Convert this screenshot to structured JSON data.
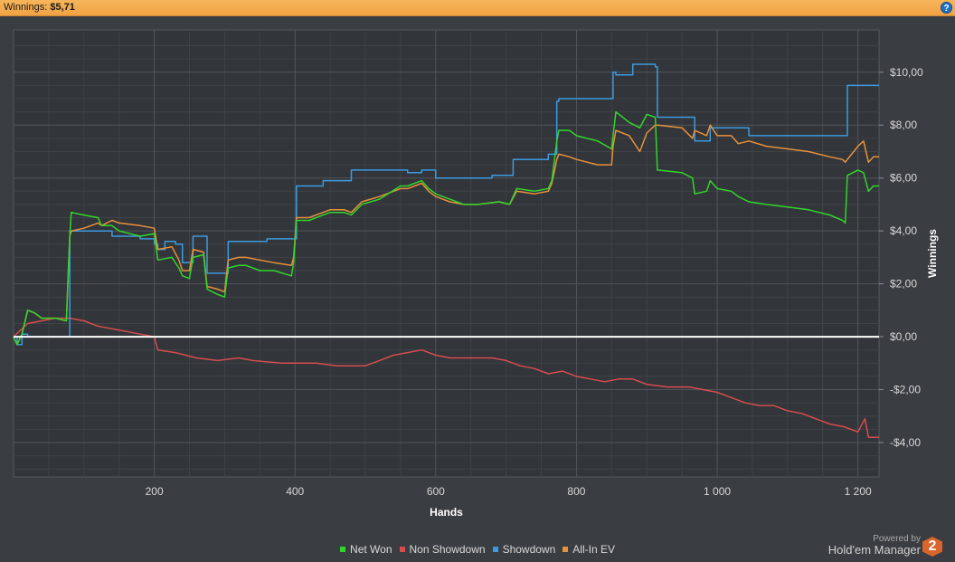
{
  "header": {
    "label": "Winnings:",
    "value": "$5,71",
    "help": "?"
  },
  "legend_footer": {
    "powered_by": "Powered by",
    "brand": "Hold'em Manager",
    "logo": "2"
  },
  "colors": {
    "net_won": "#33d52c",
    "non_showdown": "#d64d4d",
    "showdown": "#3c9be0",
    "all_in_ev": "#e8913c",
    "zero_line": "#ffffff",
    "background": "#3a3d42"
  },
  "chart_data": {
    "type": "line",
    "xlabel": "Hands",
    "ylabel": "Winnings",
    "xlim": [
      0,
      1230
    ],
    "ylim": [
      -5.3,
      11.6
    ],
    "x_ticks": [
      200,
      400,
      600,
      800,
      1000,
      1200
    ],
    "x_tick_labels": [
      "200",
      "400",
      "600",
      "800",
      "1 000",
      "1 200"
    ],
    "y_ticks": [
      10,
      8,
      6,
      4,
      2,
      0,
      -2,
      -4
    ],
    "y_tick_labels": [
      "$10,00",
      "$8,00",
      "$6,00",
      "$4,00",
      "$2,00",
      "$0,00",
      "-$2,00",
      "-$4,00"
    ],
    "grid": true,
    "legend_position": "bottom",
    "series": [
      {
        "name": "Net Won",
        "color": "#33d52c",
        "points": [
          [
            0,
            0
          ],
          [
            5,
            -0.3
          ],
          [
            12,
            0.1
          ],
          [
            20,
            1.0
          ],
          [
            30,
            0.9
          ],
          [
            40,
            0.7
          ],
          [
            60,
            0.7
          ],
          [
            75,
            0.6
          ],
          [
            78,
            2.6
          ],
          [
            80,
            3.8
          ],
          [
            82,
            4.7
          ],
          [
            100,
            4.6
          ],
          [
            120,
            4.5
          ],
          [
            125,
            4.2
          ],
          [
            140,
            4.2
          ],
          [
            150,
            4.0
          ],
          [
            180,
            3.8
          ],
          [
            200,
            3.9
          ],
          [
            205,
            2.9
          ],
          [
            225,
            3.0
          ],
          [
            235,
            2.6
          ],
          [
            240,
            2.3
          ],
          [
            250,
            2.2
          ],
          [
            255,
            3.0
          ],
          [
            270,
            3.1
          ],
          [
            275,
            1.8
          ],
          [
            290,
            1.6
          ],
          [
            300,
            1.5
          ],
          [
            305,
            2.6
          ],
          [
            320,
            2.7
          ],
          [
            330,
            2.7
          ],
          [
            350,
            2.5
          ],
          [
            370,
            2.5
          ],
          [
            395,
            2.3
          ],
          [
            398,
            2.8
          ],
          [
            402,
            4.4
          ],
          [
            420,
            4.4
          ],
          [
            440,
            4.6
          ],
          [
            450,
            4.7
          ],
          [
            470,
            4.7
          ],
          [
            480,
            4.6
          ],
          [
            495,
            5.0
          ],
          [
            520,
            5.2
          ],
          [
            550,
            5.7
          ],
          [
            560,
            5.7
          ],
          [
            580,
            5.9
          ],
          [
            590,
            5.6
          ],
          [
            600,
            5.4
          ],
          [
            610,
            5.3
          ],
          [
            620,
            5.2
          ],
          [
            640,
            5.0
          ],
          [
            660,
            5.0
          ],
          [
            690,
            5.1
          ],
          [
            705,
            5.0
          ],
          [
            715,
            5.6
          ],
          [
            740,
            5.5
          ],
          [
            760,
            5.6
          ],
          [
            765,
            5.9
          ],
          [
            772,
            7.4
          ],
          [
            775,
            7.8
          ],
          [
            790,
            7.8
          ],
          [
            800,
            7.6
          ],
          [
            830,
            7.4
          ],
          [
            850,
            7.1
          ],
          [
            852,
            7.6
          ],
          [
            856,
            8.5
          ],
          [
            875,
            8.1
          ],
          [
            890,
            7.9
          ],
          [
            900,
            8.4
          ],
          [
            912,
            8.3
          ],
          [
            915,
            6.3
          ],
          [
            950,
            6.2
          ],
          [
            965,
            6.0
          ],
          [
            968,
            5.4
          ],
          [
            985,
            5.5
          ],
          [
            990,
            5.9
          ],
          [
            1000,
            5.6
          ],
          [
            1020,
            5.5
          ],
          [
            1030,
            5.3
          ],
          [
            1045,
            5.1
          ],
          [
            1070,
            5.0
          ],
          [
            1100,
            4.9
          ],
          [
            1130,
            4.8
          ],
          [
            1160,
            4.6
          ],
          [
            1178,
            4.4
          ],
          [
            1182,
            4.3
          ],
          [
            1185,
            6.1
          ],
          [
            1200,
            6.3
          ],
          [
            1208,
            6.2
          ],
          [
            1215,
            5.5
          ],
          [
            1222,
            5.7
          ],
          [
            1230,
            5.7
          ]
        ]
      },
      {
        "name": "Non Showdown",
        "color": "#d64d4d",
        "points": [
          [
            0,
            0
          ],
          [
            20,
            0.5
          ],
          [
            40,
            0.6
          ],
          [
            60,
            0.7
          ],
          [
            80,
            0.7
          ],
          [
            100,
            0.6
          ],
          [
            120,
            0.4
          ],
          [
            140,
            0.3
          ],
          [
            160,
            0.2
          ],
          [
            180,
            0.1
          ],
          [
            200,
            0.0
          ],
          [
            205,
            -0.5
          ],
          [
            230,
            -0.6
          ],
          [
            260,
            -0.8
          ],
          [
            290,
            -0.9
          ],
          [
            320,
            -0.8
          ],
          [
            340,
            -0.9
          ],
          [
            380,
            -1.0
          ],
          [
            400,
            -1.0
          ],
          [
            430,
            -1.0
          ],
          [
            460,
            -1.1
          ],
          [
            500,
            -1.1
          ],
          [
            520,
            -0.9
          ],
          [
            540,
            -0.7
          ],
          [
            560,
            -0.6
          ],
          [
            580,
            -0.5
          ],
          [
            600,
            -0.7
          ],
          [
            620,
            -0.8
          ],
          [
            650,
            -0.8
          ],
          [
            680,
            -0.8
          ],
          [
            700,
            -0.9
          ],
          [
            720,
            -1.1
          ],
          [
            740,
            -1.2
          ],
          [
            760,
            -1.4
          ],
          [
            780,
            -1.3
          ],
          [
            800,
            -1.5
          ],
          [
            820,
            -1.6
          ],
          [
            840,
            -1.7
          ],
          [
            860,
            -1.6
          ],
          [
            880,
            -1.6
          ],
          [
            900,
            -1.8
          ],
          [
            930,
            -1.9
          ],
          [
            960,
            -1.9
          ],
          [
            1000,
            -2.1
          ],
          [
            1020,
            -2.3
          ],
          [
            1040,
            -2.5
          ],
          [
            1060,
            -2.6
          ],
          [
            1080,
            -2.6
          ],
          [
            1100,
            -2.8
          ],
          [
            1120,
            -2.9
          ],
          [
            1140,
            -3.1
          ],
          [
            1160,
            -3.3
          ],
          [
            1180,
            -3.4
          ],
          [
            1200,
            -3.6
          ],
          [
            1210,
            -3.1
          ],
          [
            1215,
            -3.8
          ],
          [
            1230,
            -3.8
          ]
        ]
      },
      {
        "name": "Showdown",
        "color": "#3c9be0",
        "points": [
          [
            0,
            0
          ],
          [
            5,
            -0.3
          ],
          [
            12,
            0.1
          ],
          [
            20,
            0.0
          ],
          [
            78,
            0.0
          ],
          [
            80,
            4.0
          ],
          [
            120,
            4.0
          ],
          [
            140,
            3.8
          ],
          [
            180,
            3.7
          ],
          [
            200,
            3.5
          ],
          [
            205,
            3.3
          ],
          [
            215,
            3.6
          ],
          [
            230,
            3.5
          ],
          [
            240,
            2.8
          ],
          [
            250,
            2.8
          ],
          [
            255,
            3.8
          ],
          [
            270,
            3.8
          ],
          [
            275,
            2.4
          ],
          [
            300,
            2.4
          ],
          [
            305,
            3.6
          ],
          [
            330,
            3.6
          ],
          [
            360,
            3.7
          ],
          [
            398,
            3.7
          ],
          [
            402,
            5.7
          ],
          [
            420,
            5.7
          ],
          [
            440,
            5.9
          ],
          [
            470,
            5.9
          ],
          [
            480,
            6.3
          ],
          [
            520,
            6.3
          ],
          [
            560,
            6.2
          ],
          [
            580,
            6.3
          ],
          [
            600,
            6.0
          ],
          [
            640,
            6.0
          ],
          [
            680,
            6.1
          ],
          [
            705,
            6.1
          ],
          [
            710,
            6.7
          ],
          [
            750,
            6.7
          ],
          [
            760,
            6.9
          ],
          [
            772,
            8.9
          ],
          [
            775,
            9.0
          ],
          [
            850,
            9.0
          ],
          [
            852,
            10.0
          ],
          [
            856,
            9.9
          ],
          [
            870,
            9.9
          ],
          [
            880,
            10.3
          ],
          [
            900,
            10.3
          ],
          [
            912,
            10.2
          ],
          [
            915,
            8.3
          ],
          [
            950,
            8.3
          ],
          [
            968,
            7.4
          ],
          [
            985,
            7.4
          ],
          [
            990,
            7.9
          ],
          [
            1030,
            7.9
          ],
          [
            1045,
            7.6
          ],
          [
            1080,
            7.6
          ],
          [
            1180,
            7.6
          ],
          [
            1185,
            9.5
          ],
          [
            1230,
            9.5
          ]
        ]
      },
      {
        "name": "All-In EV",
        "color": "#e8913c",
        "points": [
          [
            0,
            0
          ],
          [
            5,
            -0.3
          ],
          [
            12,
            0.1
          ],
          [
            20,
            1.0
          ],
          [
            30,
            0.9
          ],
          [
            40,
            0.7
          ],
          [
            60,
            0.7
          ],
          [
            75,
            0.6
          ],
          [
            78,
            2.6
          ],
          [
            80,
            3.8
          ],
          [
            82,
            4.0
          ],
          [
            100,
            4.1
          ],
          [
            120,
            4.3
          ],
          [
            125,
            4.2
          ],
          [
            140,
            4.4
          ],
          [
            150,
            4.3
          ],
          [
            180,
            4.2
          ],
          [
            200,
            4.1
          ],
          [
            205,
            3.3
          ],
          [
            225,
            3.4
          ],
          [
            235,
            2.9
          ],
          [
            240,
            2.5
          ],
          [
            250,
            2.5
          ],
          [
            255,
            3.3
          ],
          [
            270,
            3.2
          ],
          [
            275,
            1.9
          ],
          [
            290,
            1.8
          ],
          [
            300,
            1.7
          ],
          [
            305,
            2.9
          ],
          [
            320,
            3.0
          ],
          [
            330,
            3.0
          ],
          [
            350,
            2.9
          ],
          [
            370,
            2.8
          ],
          [
            395,
            2.7
          ],
          [
            398,
            3.0
          ],
          [
            402,
            4.5
          ],
          [
            420,
            4.5
          ],
          [
            440,
            4.7
          ],
          [
            450,
            4.8
          ],
          [
            470,
            4.8
          ],
          [
            480,
            4.7
          ],
          [
            495,
            5.1
          ],
          [
            520,
            5.3
          ],
          [
            550,
            5.6
          ],
          [
            560,
            5.6
          ],
          [
            580,
            5.8
          ],
          [
            590,
            5.5
          ],
          [
            600,
            5.3
          ],
          [
            610,
            5.2
          ],
          [
            620,
            5.1
          ],
          [
            640,
            5.0
          ],
          [
            660,
            5.0
          ],
          [
            690,
            5.1
          ],
          [
            705,
            5.0
          ],
          [
            715,
            5.5
          ],
          [
            740,
            5.4
          ],
          [
            760,
            5.5
          ],
          [
            765,
            5.8
          ],
          [
            772,
            6.7
          ],
          [
            775,
            6.9
          ],
          [
            790,
            6.8
          ],
          [
            800,
            6.7
          ],
          [
            830,
            6.5
          ],
          [
            850,
            6.5
          ],
          [
            852,
            7.2
          ],
          [
            856,
            7.8
          ],
          [
            875,
            7.6
          ],
          [
            890,
            7.0
          ],
          [
            900,
            7.7
          ],
          [
            912,
            8.0
          ],
          [
            915,
            8.0
          ],
          [
            950,
            7.9
          ],
          [
            965,
            7.5
          ],
          [
            968,
            7.8
          ],
          [
            985,
            7.6
          ],
          [
            990,
            8.0
          ],
          [
            1000,
            7.6
          ],
          [
            1020,
            7.6
          ],
          [
            1030,
            7.3
          ],
          [
            1045,
            7.4
          ],
          [
            1070,
            7.2
          ],
          [
            1100,
            7.1
          ],
          [
            1130,
            7.0
          ],
          [
            1160,
            6.8
          ],
          [
            1178,
            6.7
          ],
          [
            1182,
            6.6
          ],
          [
            1185,
            6.7
          ],
          [
            1200,
            7.2
          ],
          [
            1208,
            7.4
          ],
          [
            1215,
            6.6
          ],
          [
            1222,
            6.8
          ],
          [
            1230,
            6.8
          ]
        ]
      }
    ]
  }
}
